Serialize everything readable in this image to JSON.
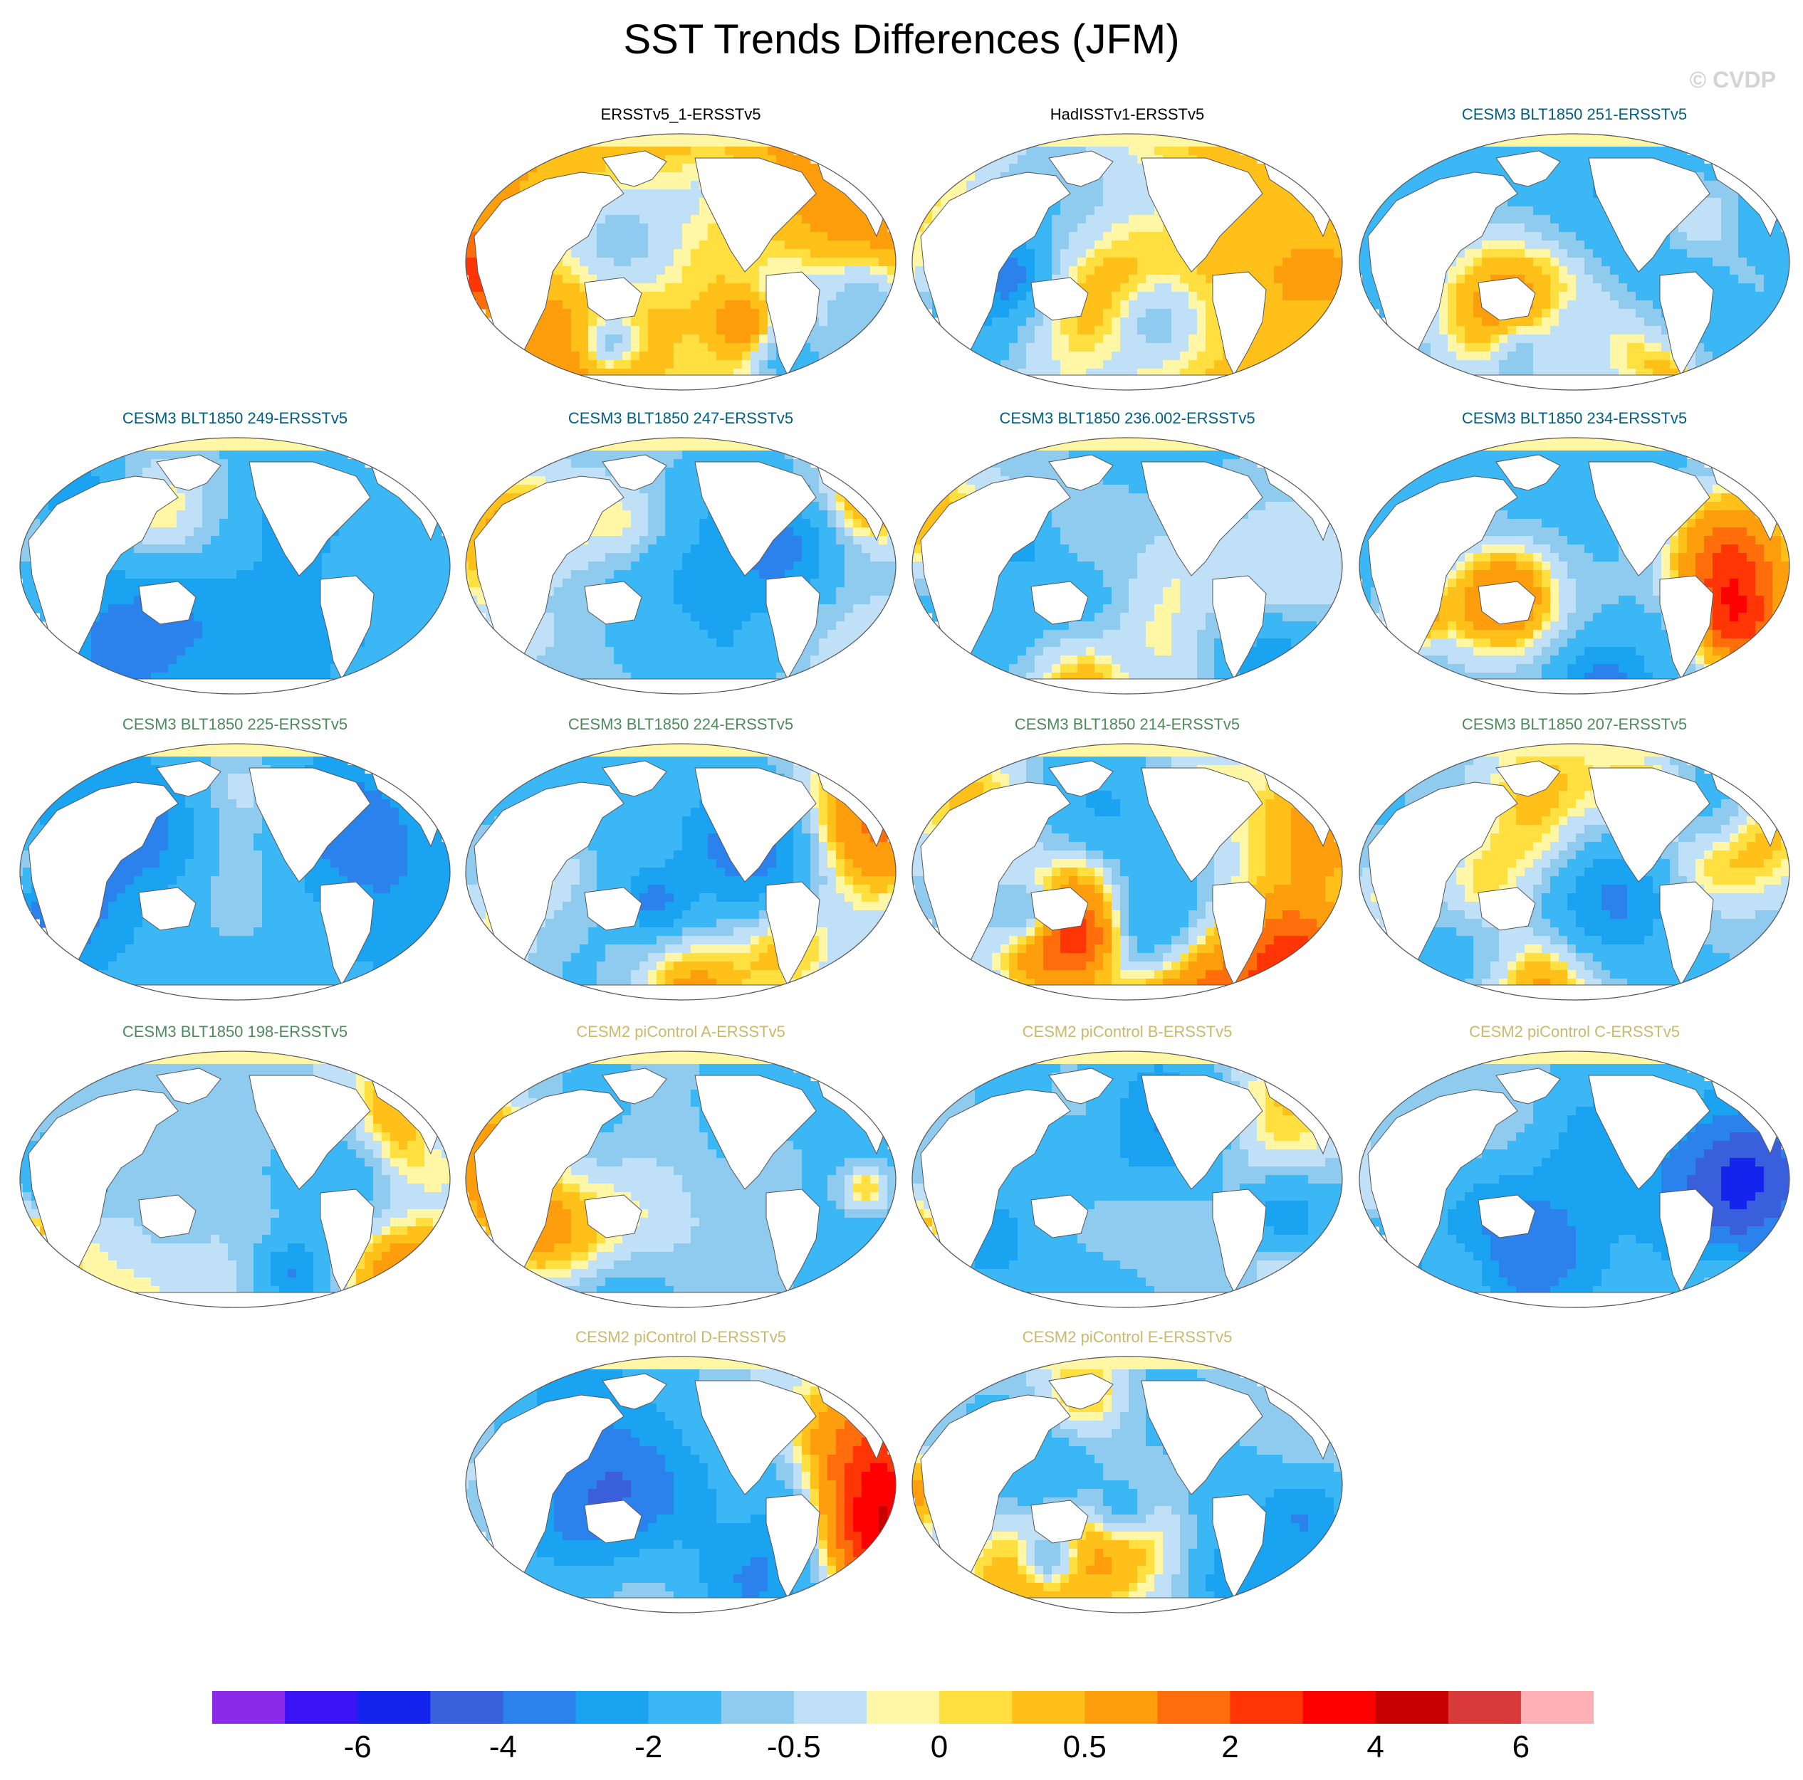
{
  "title": "SST Trends Differences (JFM)",
  "watermark": "© CVDP",
  "chart_data": {
    "type": "heatmap",
    "title": "SST Trends Differences (JFM)",
    "projection": "global map, Pacific-centred",
    "panels": [
      {
        "name": "ERSSTv5_1-ERSSTv5",
        "color": "#000000",
        "bias": 1.2,
        "seed": 3
      },
      {
        "name": "HadISSTv1-ERSSTv5",
        "color": "#000000",
        "bias": 0.6,
        "seed": 7
      },
      {
        "name": "CESM3 BLT1850 251-ERSSTv5",
        "color": "#005f82",
        "bias": -1.4,
        "seed": 11
      },
      {
        "name": "CESM3 BLT1850 249-ERSSTv5",
        "color": "#005f82",
        "bias": -1.1,
        "seed": 13
      },
      {
        "name": "CESM3 BLT1850 247-ERSSTv5",
        "color": "#005f82",
        "bias": -0.8,
        "seed": 17
      },
      {
        "name": "CESM3 BLT1850 236.002-ERSSTv5",
        "color": "#005f82",
        "bias": -1.2,
        "seed": 19
      },
      {
        "name": "CESM3 BLT1850 234-ERSSTv5",
        "color": "#005f82",
        "bias": -1.5,
        "seed": 23
      },
      {
        "name": "CESM3 BLT1850 225-ERSSTv5",
        "color": "#4f8a5c",
        "bias": -1.5,
        "seed": 29
      },
      {
        "name": "CESM3 BLT1850 224-ERSSTv5",
        "color": "#4f8a5c",
        "bias": -1.0,
        "seed": 31
      },
      {
        "name": "CESM3 BLT1850 214-ERSSTv5",
        "color": "#4f8a5c",
        "bias": -0.7,
        "seed": 37
      },
      {
        "name": "CESM3 BLT1850 207-ERSSTv5",
        "color": "#4f8a5c",
        "bias": -1.1,
        "seed": 41
      },
      {
        "name": "CESM3 BLT1850 198-ERSSTv5",
        "color": "#4f8a5c",
        "bias": -0.8,
        "seed": 43
      },
      {
        "name": "CESM2 piControl A-ERSSTv5",
        "color": "#c9b96a",
        "bias": -0.9,
        "seed": 47
      },
      {
        "name": "CESM2 piControl B-ERSSTv5",
        "color": "#c9b96a",
        "bias": -0.8,
        "seed": 53
      },
      {
        "name": "CESM2 piControl C-ERSSTv5",
        "color": "#c9b96a",
        "bias": -0.9,
        "seed": 59
      },
      {
        "name": "CESM2 piControl D-ERSSTv5",
        "color": "#c9b96a",
        "bias": -0.9,
        "seed": 61
      },
      {
        "name": "CESM2 piControl E-ERSSTv5",
        "color": "#c9b96a",
        "bias": -0.8,
        "seed": 67
      }
    ],
    "colorbar": {
      "colors": [
        "#8b2ae8",
        "#3a14f5",
        "#1524ed",
        "#3a5fdd",
        "#2c82ec",
        "#1aa3f1",
        "#3cb7f5",
        "#8ecbef",
        "#bfe0f7",
        "#fff6a6",
        "#ffe040",
        "#ffc01a",
        "#ff9e0d",
        "#ff6e0a",
        "#ff3505",
        "#ff0000",
        "#c80000",
        "#d83a3a",
        "#ffb0b5"
      ],
      "tick_labels": [
        "-6",
        "-4",
        "-2",
        "-0.5",
        "0",
        "0.5",
        "2",
        "4",
        "6"
      ]
    }
  }
}
